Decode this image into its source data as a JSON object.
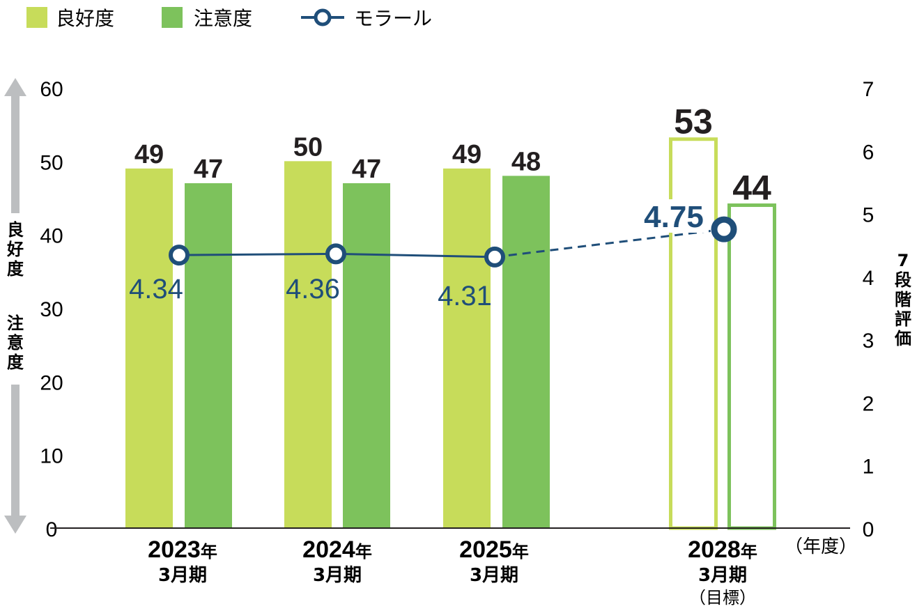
{
  "chart_data": {
    "type": "bar",
    "legend": [
      {
        "label": "良好度",
        "color": "#c7dc5a",
        "kind": "bar"
      },
      {
        "label": "注意度",
        "color": "#7dc25c",
        "kind": "bar"
      },
      {
        "label": "モラール",
        "color": "#1f4e79",
        "kind": "line"
      }
    ],
    "categories": [
      {
        "year": "2023",
        "year_suffix": "年",
        "period": "3月期",
        "note": "",
        "target": false
      },
      {
        "year": "2024",
        "year_suffix": "年",
        "period": "3月期",
        "note": "",
        "target": false
      },
      {
        "year": "2025",
        "year_suffix": "年",
        "period": "3月期",
        "note": "",
        "target": false
      },
      {
        "year": "2028",
        "year_suffix": "年",
        "period": "3月期",
        "note": "（目標）",
        "target": true
      }
    ],
    "series": [
      {
        "name": "良好度",
        "values": [
          49,
          50,
          49,
          53
        ],
        "axis": "left",
        "color": "#c7dc5a"
      },
      {
        "name": "注意度",
        "values": [
          47,
          47,
          48,
          44
        ],
        "axis": "left",
        "color": "#7dc25c"
      },
      {
        "name": "モラール",
        "values": [
          4.34,
          4.36,
          4.31,
          4.75
        ],
        "axis": "right",
        "color": "#1f4e79",
        "labels": [
          "4.34",
          "4.36",
          "4.31",
          "4.75"
        ]
      }
    ],
    "left_axis": {
      "ticks": [
        0,
        10,
        20,
        30,
        40,
        50,
        60
      ],
      "range": [
        0,
        60
      ],
      "label_top": "良好度",
      "label_bottom": "注意度"
    },
    "right_axis": {
      "ticks": [
        0,
        1,
        2,
        3,
        4,
        5,
        6,
        7
      ],
      "range": [
        0,
        7
      ],
      "label": "7段階評価"
    },
    "x_unit": "（年度）"
  },
  "colors": {
    "good": "#c7dc5a",
    "caution": "#7dc25c",
    "morale": "#1f4e79",
    "axis": "#231f20",
    "arrow": "#bcbec0"
  }
}
